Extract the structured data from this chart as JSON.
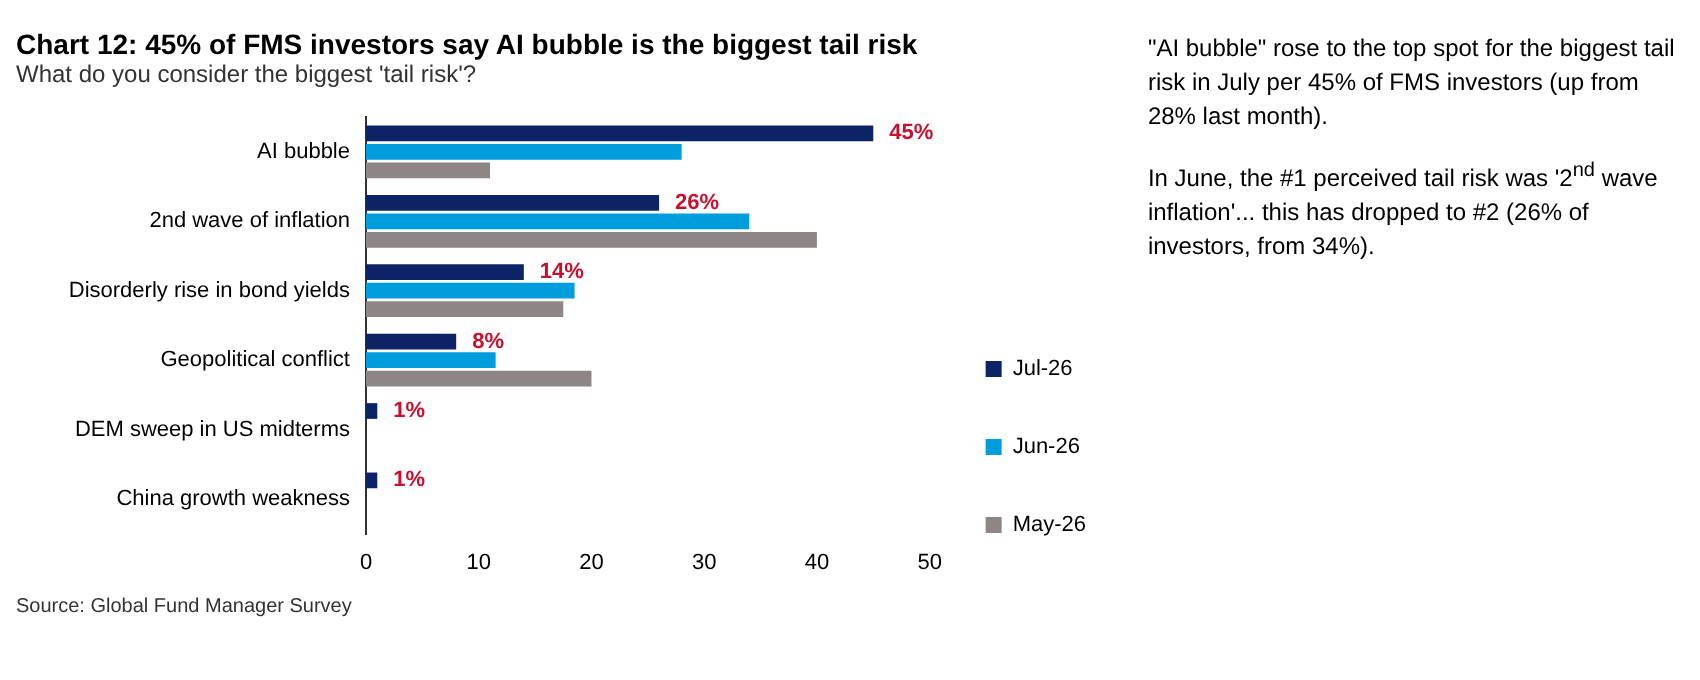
{
  "chart_data": {
    "type": "bar",
    "orientation": "horizontal",
    "title": "Chart 12: 45% of FMS investors say AI bubble is the biggest tail risk",
    "subtitle": "What do you consider the biggest 'tail risk'?",
    "categories": [
      "AI bubble",
      "2nd wave of inflation",
      "Disorderly rise in bond yields",
      "Geopolitical conflict",
      "DEM sweep in US midterms",
      "China growth weakness"
    ],
    "series": [
      {
        "name": "Jul-26",
        "color": "#0c2366",
        "values": [
          45,
          26,
          14,
          8,
          1,
          1
        ],
        "value_labels": [
          "45%",
          "26%",
          "14%",
          "8%",
          "1%",
          "1%"
        ]
      },
      {
        "name": "Jun-26",
        "color": "#009ddc",
        "values": [
          28,
          34,
          18.5,
          11.5,
          null,
          null
        ]
      },
      {
        "name": "May-26",
        "color": "#8e8585",
        "values": [
          11,
          40,
          17.5,
          20,
          null,
          null
        ]
      }
    ],
    "xlim": [
      0,
      50
    ],
    "xticks": [
      0,
      10,
      20,
      30,
      40,
      50
    ],
    "grid": false,
    "legend": "right",
    "annotations": [
      "\"AI bubble\" rose to the top spot for the biggest tail risk in July per 45% of FMS investors (up from 28% last month).",
      "In June, the #1 perceived tail risk was '2$^{nd}$ wave inflation'... this has dropped to #2 (26% of investors, from 34%).",
      "Source: Global Fund Manager Survey"
    ]
  }
}
